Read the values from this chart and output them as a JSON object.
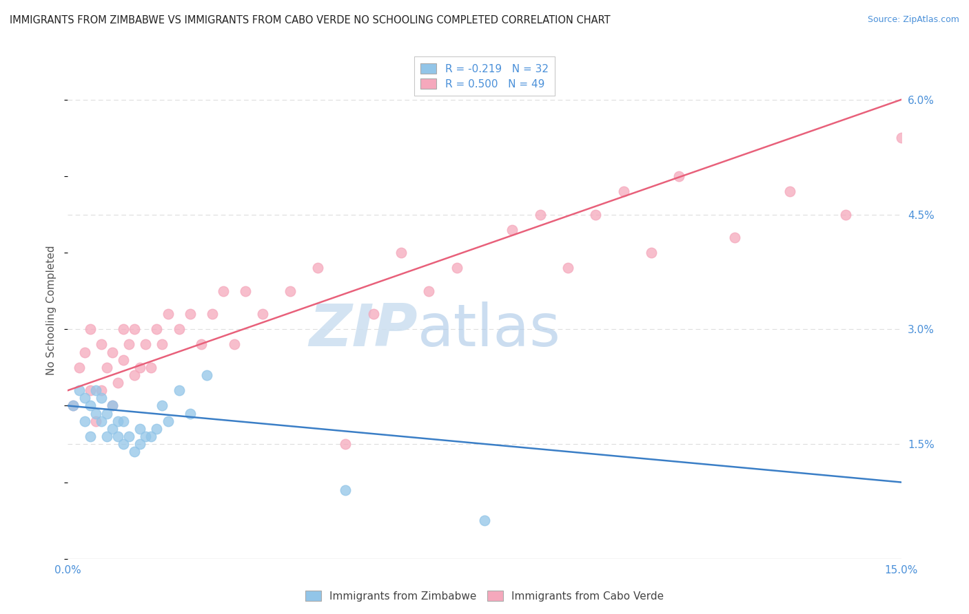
{
  "title": "IMMIGRANTS FROM ZIMBABWE VS IMMIGRANTS FROM CABO VERDE NO SCHOOLING COMPLETED CORRELATION CHART",
  "source": "Source: ZipAtlas.com",
  "ylabel": "No Schooling Completed",
  "xlabel": "",
  "xlim": [
    0.0,
    0.15
  ],
  "ylim": [
    0.0,
    0.065
  ],
  "legend_r1": "R = -0.219",
  "legend_n1": "N = 32",
  "legend_r2": "R = 0.500",
  "legend_n2": "N = 49",
  "blue_color": "#92C5E8",
  "pink_color": "#F5A8BC",
  "blue_line_color": "#3A7EC6",
  "pink_line_color": "#E8607A",
  "background_color": "#FFFFFF",
  "grid_color": "#DDDDDD",
  "zimbabwe_x": [
    0.001,
    0.002,
    0.003,
    0.003,
    0.004,
    0.004,
    0.005,
    0.005,
    0.006,
    0.006,
    0.007,
    0.007,
    0.008,
    0.008,
    0.009,
    0.009,
    0.01,
    0.01,
    0.011,
    0.012,
    0.013,
    0.013,
    0.014,
    0.015,
    0.016,
    0.017,
    0.018,
    0.02,
    0.022,
    0.025,
    0.05,
    0.075
  ],
  "zimbabwe_y": [
    0.02,
    0.022,
    0.018,
    0.021,
    0.016,
    0.02,
    0.019,
    0.022,
    0.018,
    0.021,
    0.016,
    0.019,
    0.017,
    0.02,
    0.016,
    0.018,
    0.015,
    0.018,
    0.016,
    0.014,
    0.015,
    0.017,
    0.016,
    0.016,
    0.017,
    0.02,
    0.018,
    0.022,
    0.019,
    0.024,
    0.009,
    0.005
  ],
  "caboverde_x": [
    0.001,
    0.002,
    0.003,
    0.004,
    0.004,
    0.005,
    0.006,
    0.006,
    0.007,
    0.008,
    0.008,
    0.009,
    0.01,
    0.01,
    0.011,
    0.012,
    0.012,
    0.013,
    0.014,
    0.015,
    0.016,
    0.017,
    0.018,
    0.02,
    0.022,
    0.024,
    0.026,
    0.028,
    0.03,
    0.032,
    0.035,
    0.04,
    0.045,
    0.05,
    0.055,
    0.06,
    0.065,
    0.07,
    0.08,
    0.085,
    0.09,
    0.095,
    0.1,
    0.105,
    0.11,
    0.12,
    0.13,
    0.14,
    0.15
  ],
  "caboverde_y": [
    0.02,
    0.025,
    0.027,
    0.022,
    0.03,
    0.018,
    0.022,
    0.028,
    0.025,
    0.02,
    0.027,
    0.023,
    0.026,
    0.03,
    0.028,
    0.024,
    0.03,
    0.025,
    0.028,
    0.025,
    0.03,
    0.028,
    0.032,
    0.03,
    0.032,
    0.028,
    0.032,
    0.035,
    0.028,
    0.035,
    0.032,
    0.035,
    0.038,
    0.015,
    0.032,
    0.04,
    0.035,
    0.038,
    0.043,
    0.045,
    0.038,
    0.045,
    0.048,
    0.04,
    0.05,
    0.042,
    0.048,
    0.045,
    0.055
  ],
  "blue_line_x0": 0.0,
  "blue_line_y0": 0.02,
  "blue_line_x1": 0.15,
  "blue_line_y1": 0.01,
  "pink_line_x0": 0.0,
  "pink_line_y0": 0.022,
  "pink_line_x1": 0.15,
  "pink_line_y1": 0.06
}
